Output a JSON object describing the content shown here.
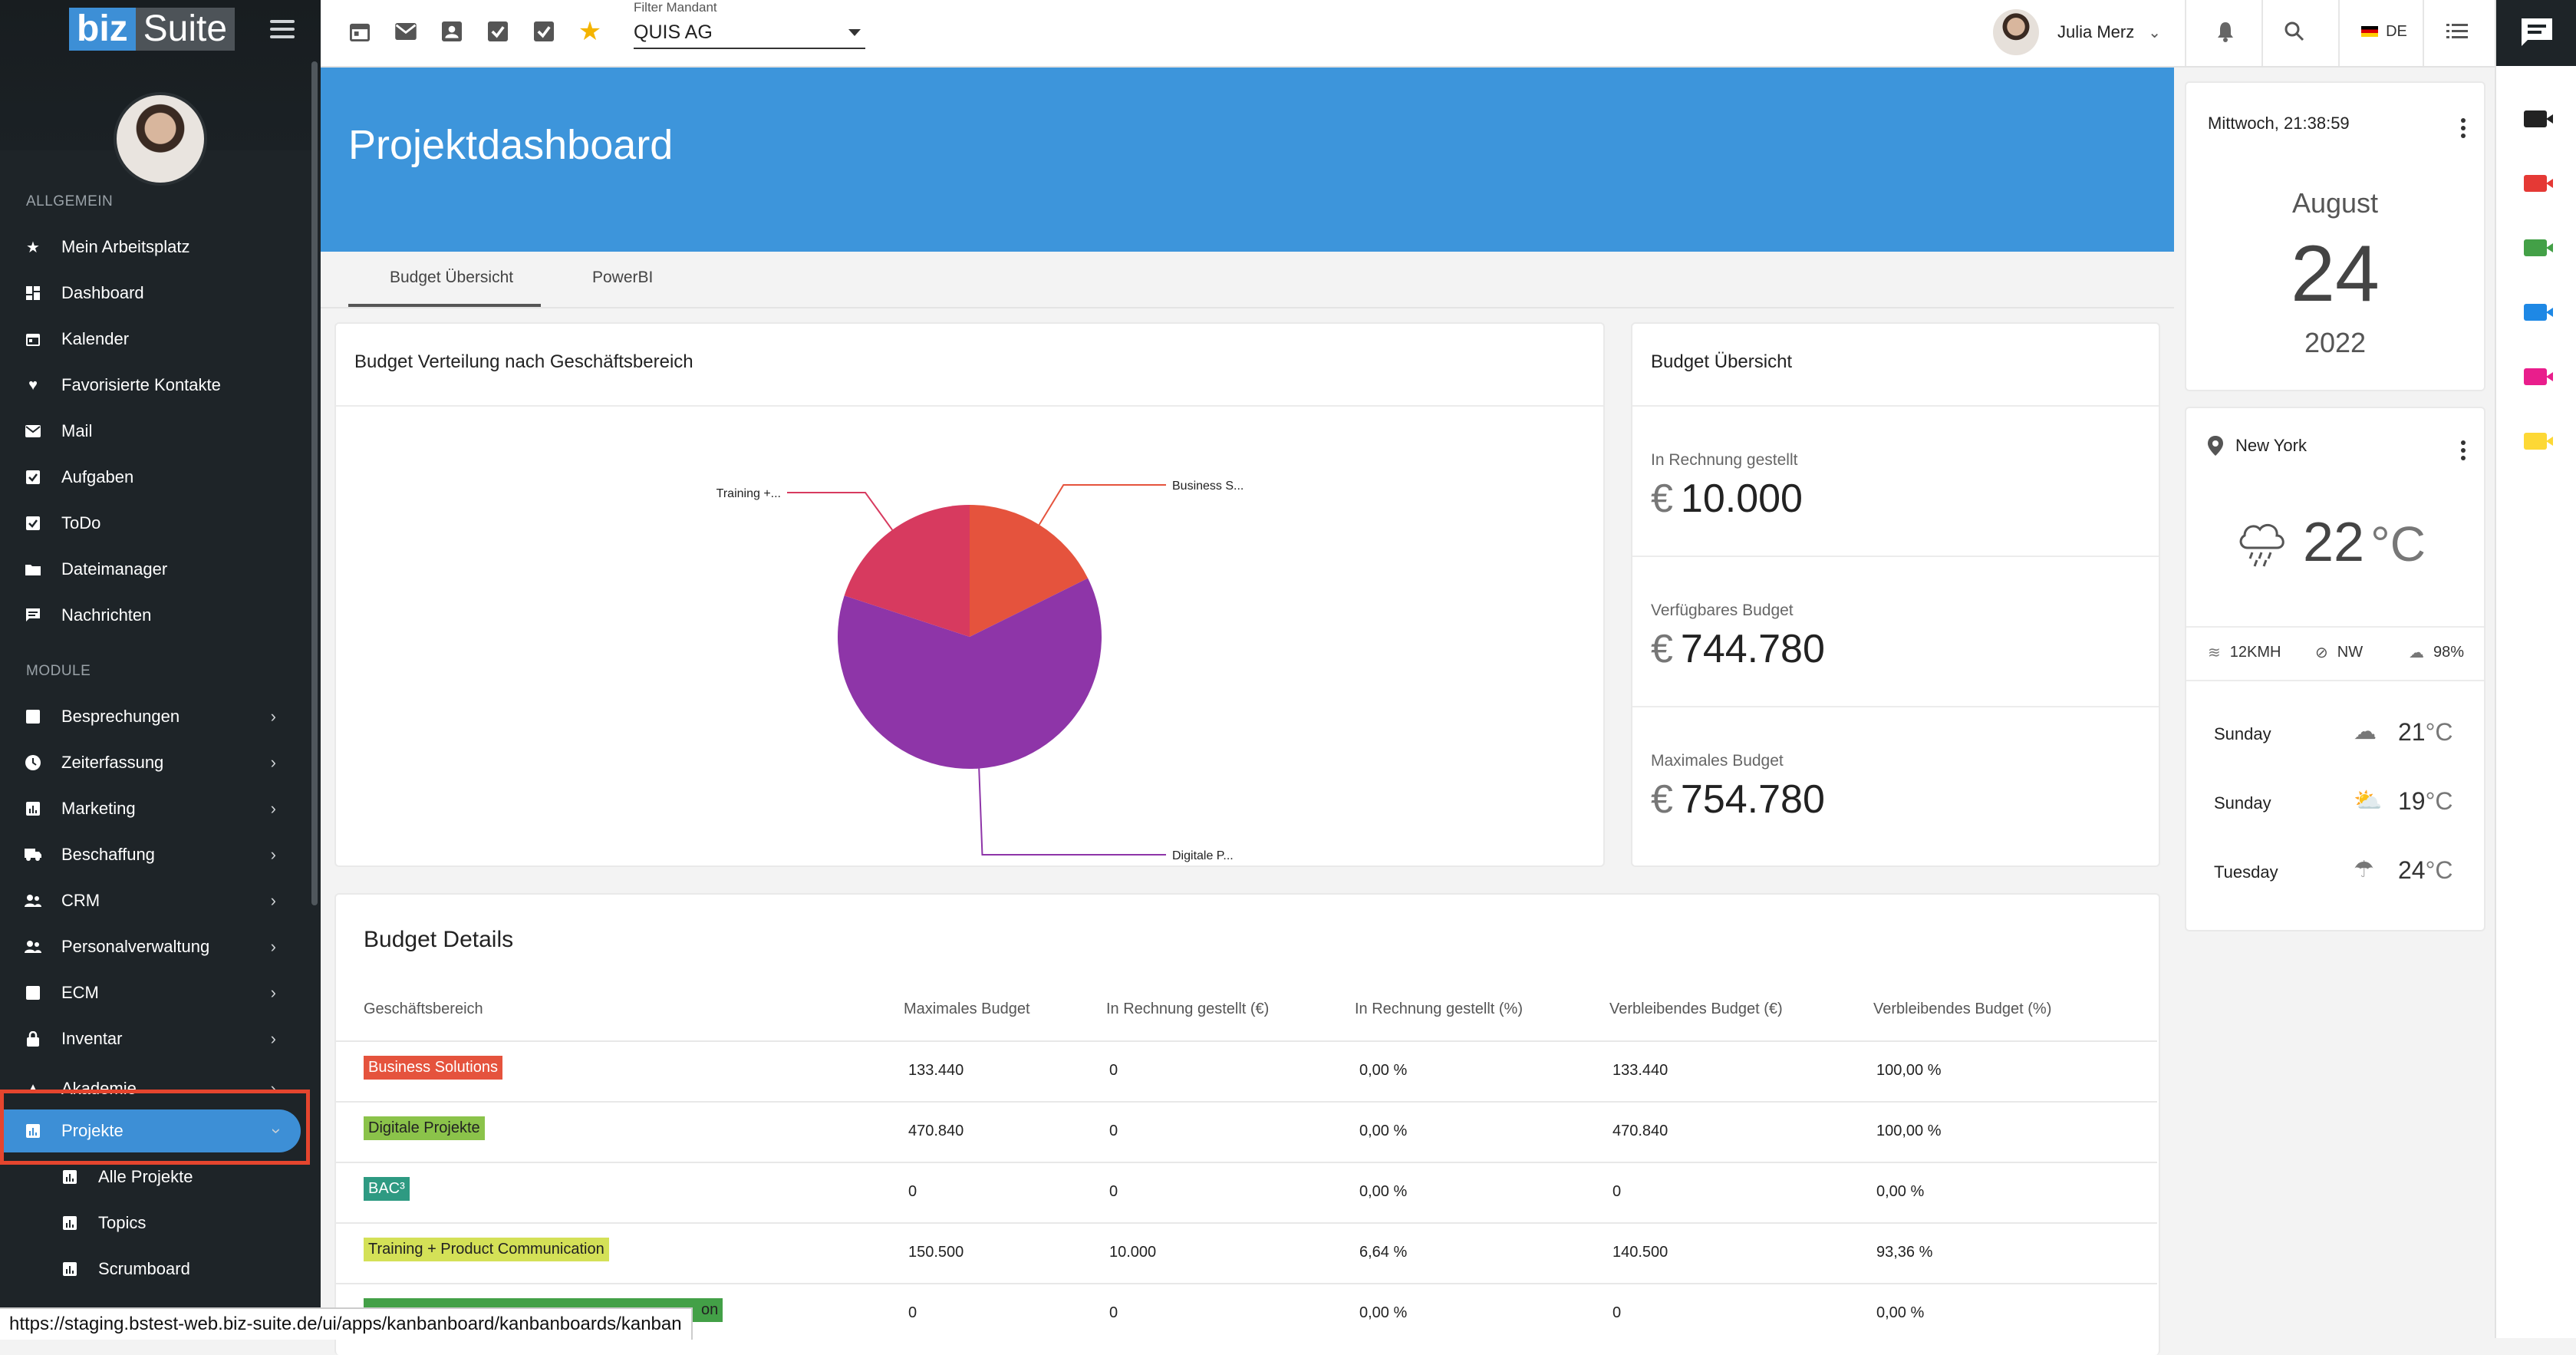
{
  "sidebar": {
    "brand_biz": "biz",
    "brand_suite": "Suite",
    "section_general": "ALLGEMEIN",
    "section_modules": "MODULE",
    "general_items": [
      {
        "label": "Mein Arbeitsplatz",
        "icon": "star-icon"
      },
      {
        "label": "Dashboard",
        "icon": "dashboard-icon"
      },
      {
        "label": "Kalender",
        "icon": "calendar-icon"
      },
      {
        "label": "Favorisierte Kontakte",
        "icon": "heart-icon"
      },
      {
        "label": "Mail",
        "icon": "mail-icon"
      },
      {
        "label": "Aufgaben",
        "icon": "checkbox-icon"
      },
      {
        "label": "ToDo",
        "icon": "checkbox-icon"
      },
      {
        "label": "Dateimanager",
        "icon": "folder-icon"
      },
      {
        "label": "Nachrichten",
        "icon": "message-icon"
      }
    ],
    "module_items": [
      {
        "label": "Besprechungen",
        "icon": "clipboard-icon"
      },
      {
        "label": "Zeiterfassung",
        "icon": "clock-icon"
      },
      {
        "label": "Marketing",
        "icon": "chart-icon"
      },
      {
        "label": "Beschaffung",
        "icon": "truck-icon"
      },
      {
        "label": "CRM",
        "icon": "people-icon"
      },
      {
        "label": "Personalverwaltung",
        "icon": "people-icon"
      },
      {
        "label": "ECM",
        "icon": "archive-icon"
      },
      {
        "label": "Inventar",
        "icon": "lock-icon"
      },
      {
        "label": "Akademie",
        "icon": "graduation-icon"
      },
      {
        "label": "Projekte",
        "icon": "chart-icon"
      }
    ],
    "sub_items": [
      {
        "label": "Alle Projekte"
      },
      {
        "label": "Topics"
      },
      {
        "label": "Scrumboard"
      }
    ],
    "active_item": "Projekte"
  },
  "topbar": {
    "filter_label": "Filter Mandant",
    "filter_value": "QUIS AG",
    "user_name": "Julia Merz",
    "language": "DE"
  },
  "header": {
    "title": "Projektdashboard"
  },
  "tabs": [
    "Budget Übersicht",
    "PowerBI"
  ],
  "pie_card": {
    "title": "Budget Verteilung nach Geschäftsbereich"
  },
  "chart_data": {
    "type": "pie",
    "title": "Budget Verteilung nach Geschäftsbereich",
    "labels": [
      "Business S...",
      "Digitale P...",
      "Training +..."
    ],
    "values": [
      133440,
      470840,
      150500
    ],
    "colors": [
      "#e5533d",
      "#8e35a8",
      "#d73a5f"
    ]
  },
  "overview_card": {
    "title": "Budget Übersicht",
    "blocks": [
      {
        "label": "In Rechnung gestellt",
        "currency": "€",
        "value": "10.000"
      },
      {
        "label": "Verfügbares Budget",
        "currency": "€",
        "value": "744.780"
      },
      {
        "label": "Maximales Budget",
        "currency": "€",
        "value": "754.780"
      }
    ]
  },
  "details": {
    "title": "Budget Details",
    "columns": [
      "Geschäftsbereich",
      "Maximales Budget",
      "In Rechnung gestellt (€)",
      "In Rechnung gestellt (%)",
      "Verbleibendes Budget (€)",
      "Verbleibendes Budget (%)"
    ],
    "rows": [
      {
        "name": "Business Solutions",
        "color": "#e5533d",
        "text_color": "#ffffff",
        "max": "133.440",
        "billed": "0",
        "billed_pct": "0,00 %",
        "remaining": "133.440",
        "remaining_pct": "100,00 %"
      },
      {
        "name": "Digitale Projekte",
        "color": "#8bc34a",
        "text_color": "#222222",
        "max": "470.840",
        "billed": "0",
        "billed_pct": "0,00 %",
        "remaining": "470.840",
        "remaining_pct": "100,00 %"
      },
      {
        "name": "BAC³",
        "color": "#2e9a82",
        "text_color": "#ffffff",
        "max": "0",
        "billed": "0",
        "billed_pct": "0,00 %",
        "remaining": "0",
        "remaining_pct": "0,00 %"
      },
      {
        "name": "Training + Product Communication",
        "color": "#d4e157",
        "text_color": "#222222",
        "max": "150.500",
        "billed": "10.000",
        "billed_pct": "6,64 %",
        "remaining": "140.500",
        "remaining_pct": "93,36 %"
      },
      {
        "name": "on",
        "color": "#43a047",
        "text_color": "#222222",
        "max": "0",
        "billed": "0",
        "billed_pct": "0,00 %",
        "remaining": "0",
        "remaining_pct": "0,00 %"
      }
    ]
  },
  "clock_widget": {
    "datetime": "Mittwoch, 21:38:59",
    "month": "August",
    "day": "24",
    "year": "2022"
  },
  "weather_widget": {
    "city": "New York",
    "temp": "22",
    "unit": "°C",
    "wind": "12KMH",
    "direction": "NW",
    "humidity": "98%",
    "forecast": [
      {
        "day": "Sunday",
        "temp": "21",
        "unit": "°C",
        "icon": "cloud-icon"
      },
      {
        "day": "Sunday",
        "temp": "19",
        "unit": "°C",
        "icon": "partly-cloudy-icon"
      },
      {
        "day": "Tuesday",
        "temp": "24",
        "unit": "°C",
        "icon": "cloud-rain-icon"
      }
    ]
  },
  "status_bar": {
    "url": "https://staging.bstest-web.biz-suite.de/ui/apps/kanbanboard/kanbanboards/kanban"
  }
}
